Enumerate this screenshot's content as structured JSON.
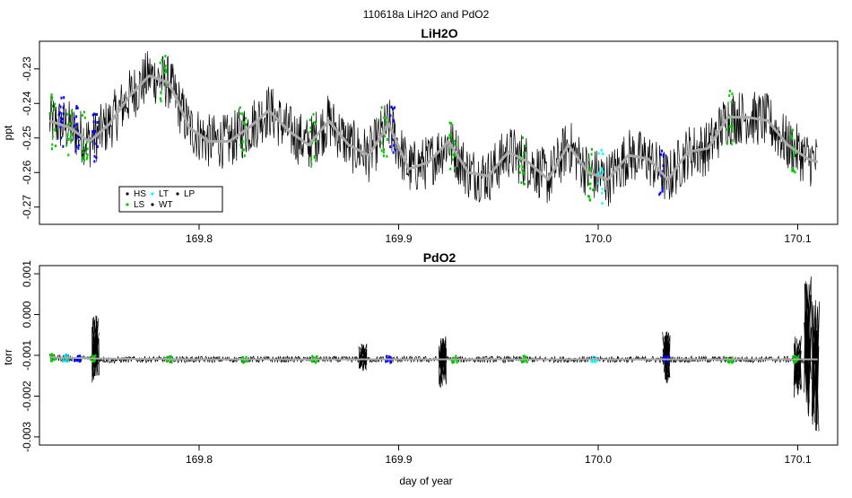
{
  "figure": {
    "title": "110618a   LiH2O and PdO2",
    "xlabel": "day of year"
  },
  "chart_data": [
    {
      "type": "line",
      "title": "LiH2O",
      "ylabel": "ppt",
      "xlim": [
        169.72,
        170.12
      ],
      "ylim": [
        -0.275,
        -0.222
      ],
      "xticks": [
        169.8,
        169.9,
        170.0,
        170.1
      ],
      "xtick_labels": [
        "169.8",
        "169.9",
        "170.0",
        "170.1"
      ],
      "yticks": [
        -0.27,
        -0.26,
        -0.25,
        -0.24,
        -0.23
      ],
      "ytick_labels": [
        "-0.27",
        "-0.26",
        "-0.25",
        "-0.24",
        "-0.23"
      ],
      "legend": {
        "placement": "bottom-left",
        "entries": [
          {
            "label": "HS",
            "color": "#000000",
            "marker": "dot"
          },
          {
            "label": "LT",
            "color": "#00ffff",
            "marker": "dot"
          },
          {
            "label": "LP",
            "color": "#000000",
            "marker": "dot"
          },
          {
            "label": "LS",
            "color": "#00cc00",
            "marker": "dot"
          },
          {
            "label": "WT",
            "color": "#000000",
            "marker": "dot"
          }
        ]
      },
      "series": [
        {
          "role": "raw",
          "color": "#000000",
          "noise": 0.008,
          "x": [
            169.725,
            169.735,
            169.745,
            169.755,
            169.765,
            169.775,
            169.785,
            169.795,
            169.805,
            169.815,
            169.825,
            169.835,
            169.845,
            169.855,
            169.865,
            169.875,
            169.885,
            169.895,
            169.905,
            169.915,
            169.925,
            169.935,
            169.945,
            169.955,
            169.965,
            169.975,
            169.985,
            169.995,
            170.005,
            170.015,
            170.025,
            170.035,
            170.045,
            170.055,
            170.065,
            170.075,
            170.085,
            170.095,
            170.105,
            170.11
          ],
          "y": [
            -0.245,
            -0.247,
            -0.251,
            -0.246,
            -0.238,
            -0.232,
            -0.234,
            -0.247,
            -0.251,
            -0.251,
            -0.247,
            -0.242,
            -0.248,
            -0.252,
            -0.245,
            -0.252,
            -0.255,
            -0.246,
            -0.259,
            -0.257,
            -0.251,
            -0.26,
            -0.261,
            -0.254,
            -0.257,
            -0.262,
            -0.252,
            -0.26,
            -0.262,
            -0.255,
            -0.256,
            -0.262,
            -0.254,
            -0.253,
            -0.244,
            -0.244,
            -0.245,
            -0.252,
            -0.256,
            -0.257
          ]
        },
        {
          "role": "smoothed",
          "color": "#aaaaaa",
          "x": [
            169.725,
            169.735,
            169.745,
            169.755,
            169.765,
            169.775,
            169.785,
            169.795,
            169.805,
            169.815,
            169.825,
            169.835,
            169.845,
            169.855,
            169.865,
            169.875,
            169.885,
            169.895,
            169.905,
            169.915,
            169.925,
            169.935,
            169.945,
            169.955,
            169.965,
            169.975,
            169.985,
            169.995,
            170.005,
            170.015,
            170.025,
            170.035,
            170.045,
            170.055,
            170.065,
            170.075,
            170.085,
            170.095,
            170.105,
            170.11
          ],
          "y": [
            -0.245,
            -0.247,
            -0.251,
            -0.246,
            -0.238,
            -0.232,
            -0.234,
            -0.247,
            -0.251,
            -0.251,
            -0.247,
            -0.242,
            -0.248,
            -0.252,
            -0.245,
            -0.252,
            -0.255,
            -0.246,
            -0.259,
            -0.257,
            -0.251,
            -0.26,
            -0.261,
            -0.254,
            -0.257,
            -0.262,
            -0.252,
            -0.26,
            -0.262,
            -0.255,
            -0.256,
            -0.262,
            -0.254,
            -0.253,
            -0.244,
            -0.244,
            -0.245,
            -0.252,
            -0.256,
            -0.257
          ]
        }
      ],
      "markers": [
        {
          "x": 169.727,
          "color": "#00cc00"
        },
        {
          "x": 169.731,
          "color": "#0000ff"
        },
        {
          "x": 169.735,
          "color": "#00cc00"
        },
        {
          "x": 169.739,
          "color": "#0000ff"
        },
        {
          "x": 169.743,
          "color": "#00cc00"
        },
        {
          "x": 169.748,
          "color": "#0000ff"
        },
        {
          "x": 169.782,
          "color": "#00cc00"
        },
        {
          "x": 169.822,
          "color": "#00cc00"
        },
        {
          "x": 169.857,
          "color": "#00cc00"
        },
        {
          "x": 169.893,
          "color": "#00cc00"
        },
        {
          "x": 169.897,
          "color": "#0000ff"
        },
        {
          "x": 169.927,
          "color": "#00cc00"
        },
        {
          "x": 169.962,
          "color": "#00cc00"
        },
        {
          "x": 169.996,
          "color": "#00cc00"
        },
        {
          "x": 170.001,
          "color": "#00ffff"
        },
        {
          "x": 170.032,
          "color": "#0000ff"
        },
        {
          "x": 170.066,
          "color": "#00cc00"
        },
        {
          "x": 170.098,
          "color": "#00cc00"
        }
      ]
    },
    {
      "type": "line",
      "title": "PdO2",
      "ylabel": "torr",
      "xlim": [
        169.72,
        170.12
      ],
      "ylim": [
        -0.0032,
        0.0012
      ],
      "xticks": [
        169.8,
        169.9,
        170.0,
        170.1
      ],
      "xtick_labels": [
        "169.8",
        "169.9",
        "170.0",
        "170.1"
      ],
      "yticks": [
        -0.003,
        -0.002,
        -0.001,
        0.0,
        0.001
      ],
      "ytick_labels": [
        "-0.003",
        "-0.002",
        "-0.001",
        "0.000",
        "0.001"
      ],
      "series": [
        {
          "role": "raw",
          "color": "#000000",
          "noise": 8e-05,
          "x": [
            169.725,
            169.735,
            169.745,
            169.75,
            169.755,
            169.765,
            169.775,
            169.785,
            169.795,
            169.805,
            169.815,
            169.825,
            169.835,
            169.845,
            169.855,
            169.865,
            169.875,
            169.885,
            169.895,
            169.905,
            169.915,
            169.925,
            169.935,
            169.945,
            169.955,
            169.965,
            169.975,
            169.985,
            169.995,
            170.005,
            170.015,
            170.025,
            170.035,
            170.045,
            170.055,
            170.065,
            170.075,
            170.085,
            170.095,
            170.1,
            170.105,
            170.11
          ],
          "y": [
            -0.00105,
            -0.00107,
            -0.00108,
            -0.00108,
            -0.00112,
            -0.0011,
            -0.0011,
            -0.0011,
            -0.0011,
            -0.0011,
            -0.0011,
            -0.0011,
            -0.0011,
            -0.0011,
            -0.0011,
            -0.0011,
            -0.0011,
            -0.0011,
            -0.0011,
            -0.0011,
            -0.0011,
            -0.0011,
            -0.0011,
            -0.0011,
            -0.0011,
            -0.0011,
            -0.0011,
            -0.0011,
            -0.0011,
            -0.0011,
            -0.0011,
            -0.0011,
            -0.0011,
            -0.0011,
            -0.0011,
            -0.0011,
            -0.0011,
            -0.0011,
            -0.0011,
            -0.0011,
            -0.0012,
            -0.0011
          ]
        },
        {
          "role": "smoothed",
          "color": "#aaaaaa",
          "x": [
            169.725,
            169.75,
            169.8,
            169.85,
            169.9,
            169.95,
            170.0,
            170.05,
            170.1,
            170.11
          ],
          "y": [
            -0.00105,
            -0.00108,
            -0.0011,
            -0.0011,
            -0.0011,
            -0.0011,
            -0.0011,
            -0.0011,
            -0.0011,
            -0.0011
          ]
        }
      ],
      "markers": [
        {
          "x": 169.727,
          "color": "#00cc00"
        },
        {
          "x": 169.733,
          "color": "#00cccc"
        },
        {
          "x": 169.739,
          "color": "#0000ff"
        },
        {
          "x": 169.747,
          "color": "#00cc00"
        },
        {
          "x": 169.785,
          "color": "#00cc00"
        },
        {
          "x": 169.823,
          "color": "#00cc00"
        },
        {
          "x": 169.858,
          "color": "#00cc00"
        },
        {
          "x": 169.895,
          "color": "#0000ff"
        },
        {
          "x": 169.928,
          "color": "#00cc00"
        },
        {
          "x": 169.963,
          "color": "#00cc00"
        },
        {
          "x": 169.998,
          "color": "#00ffff"
        },
        {
          "x": 170.034,
          "color": "#0000ff"
        },
        {
          "x": 170.066,
          "color": "#00cc00"
        },
        {
          "x": 170.099,
          "color": "#00cc00"
        }
      ],
      "spikes": [
        {
          "x": 169.748,
          "lo": -0.0017,
          "hi": 0.0
        },
        {
          "x": 169.882,
          "lo": -0.0014,
          "hi": -0.0007
        },
        {
          "x": 169.922,
          "lo": -0.0018,
          "hi": -0.0005
        },
        {
          "x": 170.034,
          "lo": -0.0017,
          "hi": -0.0004
        },
        {
          "x": 170.1,
          "lo": -0.0021,
          "hi": -0.0005
        },
        {
          "x": 170.105,
          "lo": -0.0025,
          "hi": 0.001
        },
        {
          "x": 170.109,
          "lo": -0.003,
          "hi": 0.0005
        }
      ]
    }
  ]
}
